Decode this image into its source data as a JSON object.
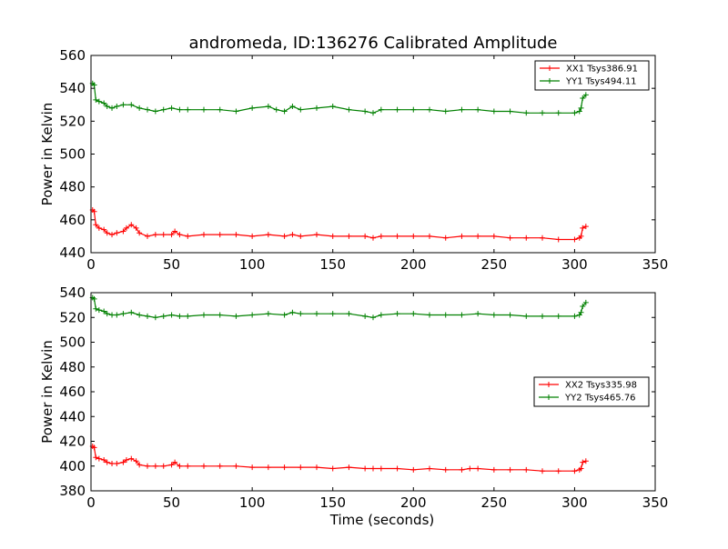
{
  "figure": {
    "title": "andromeda, ID:136276 Calibrated Amplitude"
  },
  "colors": {
    "red": "#ff0000",
    "green": "#008000"
  },
  "chart_data": [
    {
      "type": "line",
      "title": "andromeda, ID:136276 Calibrated Amplitude",
      "xlabel": "",
      "ylabel": "Power in Kelvin",
      "xlim": [
        0,
        350
      ],
      "ylim": [
        440,
        560
      ],
      "xticks": [
        "0",
        "50",
        "100",
        "150",
        "200",
        "250",
        "300",
        "350"
      ],
      "yticks": [
        "440",
        "460",
        "480",
        "500",
        "520",
        "540",
        "560"
      ],
      "grid": false,
      "legend_position": "upper-right",
      "series": [
        {
          "name": "XX1 Tsys386.91",
          "color": "#ff0000",
          "marker": "+",
          "x": [
            1,
            2,
            3,
            5,
            8,
            10,
            13,
            16,
            20,
            22,
            25,
            28,
            30,
            35,
            40,
            45,
            50,
            52,
            55,
            60,
            70,
            80,
            90,
            100,
            110,
            120,
            125,
            130,
            140,
            150,
            160,
            170,
            175,
            180,
            190,
            200,
            210,
            220,
            230,
            240,
            250,
            260,
            270,
            280,
            290,
            300,
            303,
            304,
            305,
            307
          ],
          "y": [
            466,
            465,
            457,
            455,
            454,
            452,
            451,
            452,
            453,
            455,
            457,
            455,
            452,
            450,
            451,
            451,
            451,
            453,
            451,
            450,
            451,
            451,
            451,
            450,
            451,
            450,
            451,
            450,
            451,
            450,
            450,
            450,
            449,
            450,
            450,
            450,
            450,
            449,
            450,
            450,
            450,
            449,
            449,
            449,
            448,
            448,
            449,
            450,
            455,
            456
          ]
        },
        {
          "name": "YY1 Tsys494.11",
          "color": "#008000",
          "marker": "+",
          "x": [
            1,
            2,
            3,
            5,
            8,
            10,
            13,
            16,
            20,
            25,
            30,
            35,
            40,
            45,
            50,
            55,
            60,
            70,
            80,
            90,
            100,
            110,
            115,
            120,
            125,
            130,
            140,
            150,
            160,
            170,
            175,
            180,
            190,
            200,
            210,
            220,
            230,
            240,
            250,
            260,
            270,
            280,
            290,
            300,
            303,
            304,
            305,
            307
          ],
          "y": [
            543,
            542,
            533,
            532,
            531,
            529,
            528,
            529,
            530,
            530,
            528,
            527,
            526,
            527,
            528,
            527,
            527,
            527,
            527,
            526,
            528,
            529,
            527,
            526,
            529,
            527,
            528,
            529,
            527,
            526,
            525,
            527,
            527,
            527,
            527,
            526,
            527,
            527,
            526,
            526,
            525,
            525,
            525,
            525,
            526,
            528,
            534,
            536
          ]
        }
      ]
    },
    {
      "type": "line",
      "title": "",
      "xlabel": "Time (seconds)",
      "ylabel": "Power in Kelvin",
      "xlim": [
        0,
        350
      ],
      "ylim": [
        380,
        540
      ],
      "xticks": [
        "0",
        "50",
        "100",
        "150",
        "200",
        "250",
        "300",
        "350"
      ],
      "yticks": [
        "380",
        "400",
        "420",
        "440",
        "460",
        "480",
        "500",
        "520",
        "540"
      ],
      "grid": false,
      "legend_position": "center-right",
      "series": [
        {
          "name": "XX2 Tsys335.98",
          "color": "#ff0000",
          "marker": "+",
          "x": [
            1,
            2,
            3,
            5,
            8,
            10,
            13,
            16,
            20,
            22,
            25,
            28,
            30,
            35,
            40,
            45,
            50,
            52,
            55,
            60,
            70,
            80,
            90,
            100,
            110,
            120,
            130,
            140,
            150,
            160,
            170,
            175,
            180,
            190,
            200,
            210,
            220,
            230,
            235,
            240,
            250,
            260,
            270,
            280,
            290,
            300,
            303,
            304,
            305,
            307
          ],
          "y": [
            416,
            415,
            407,
            406,
            405,
            403,
            402,
            402,
            403,
            405,
            406,
            404,
            401,
            400,
            400,
            400,
            401,
            403,
            400,
            400,
            400,
            400,
            400,
            399,
            399,
            399,
            399,
            399,
            398,
            399,
            398,
            398,
            398,
            398,
            397,
            398,
            397,
            397,
            398,
            398,
            397,
            397,
            397,
            396,
            396,
            396,
            397,
            398,
            403,
            404
          ]
        },
        {
          "name": "YY2 Tsys465.76",
          "color": "#008000",
          "marker": "+",
          "x": [
            1,
            2,
            3,
            5,
            8,
            10,
            13,
            16,
            20,
            25,
            30,
            35,
            40,
            45,
            50,
            55,
            60,
            70,
            80,
            90,
            100,
            110,
            120,
            125,
            130,
            140,
            150,
            160,
            170,
            175,
            180,
            190,
            200,
            210,
            220,
            230,
            240,
            250,
            260,
            270,
            280,
            290,
            300,
            303,
            304,
            305,
            307
          ],
          "y": [
            536,
            535,
            527,
            526,
            525,
            523,
            522,
            522,
            523,
            524,
            522,
            521,
            520,
            521,
            522,
            521,
            521,
            522,
            522,
            521,
            522,
            523,
            522,
            524,
            523,
            523,
            523,
            523,
            521,
            520,
            522,
            523,
            523,
            522,
            522,
            522,
            523,
            522,
            522,
            521,
            521,
            521,
            521,
            522,
            524,
            529,
            532
          ]
        }
      ]
    }
  ]
}
